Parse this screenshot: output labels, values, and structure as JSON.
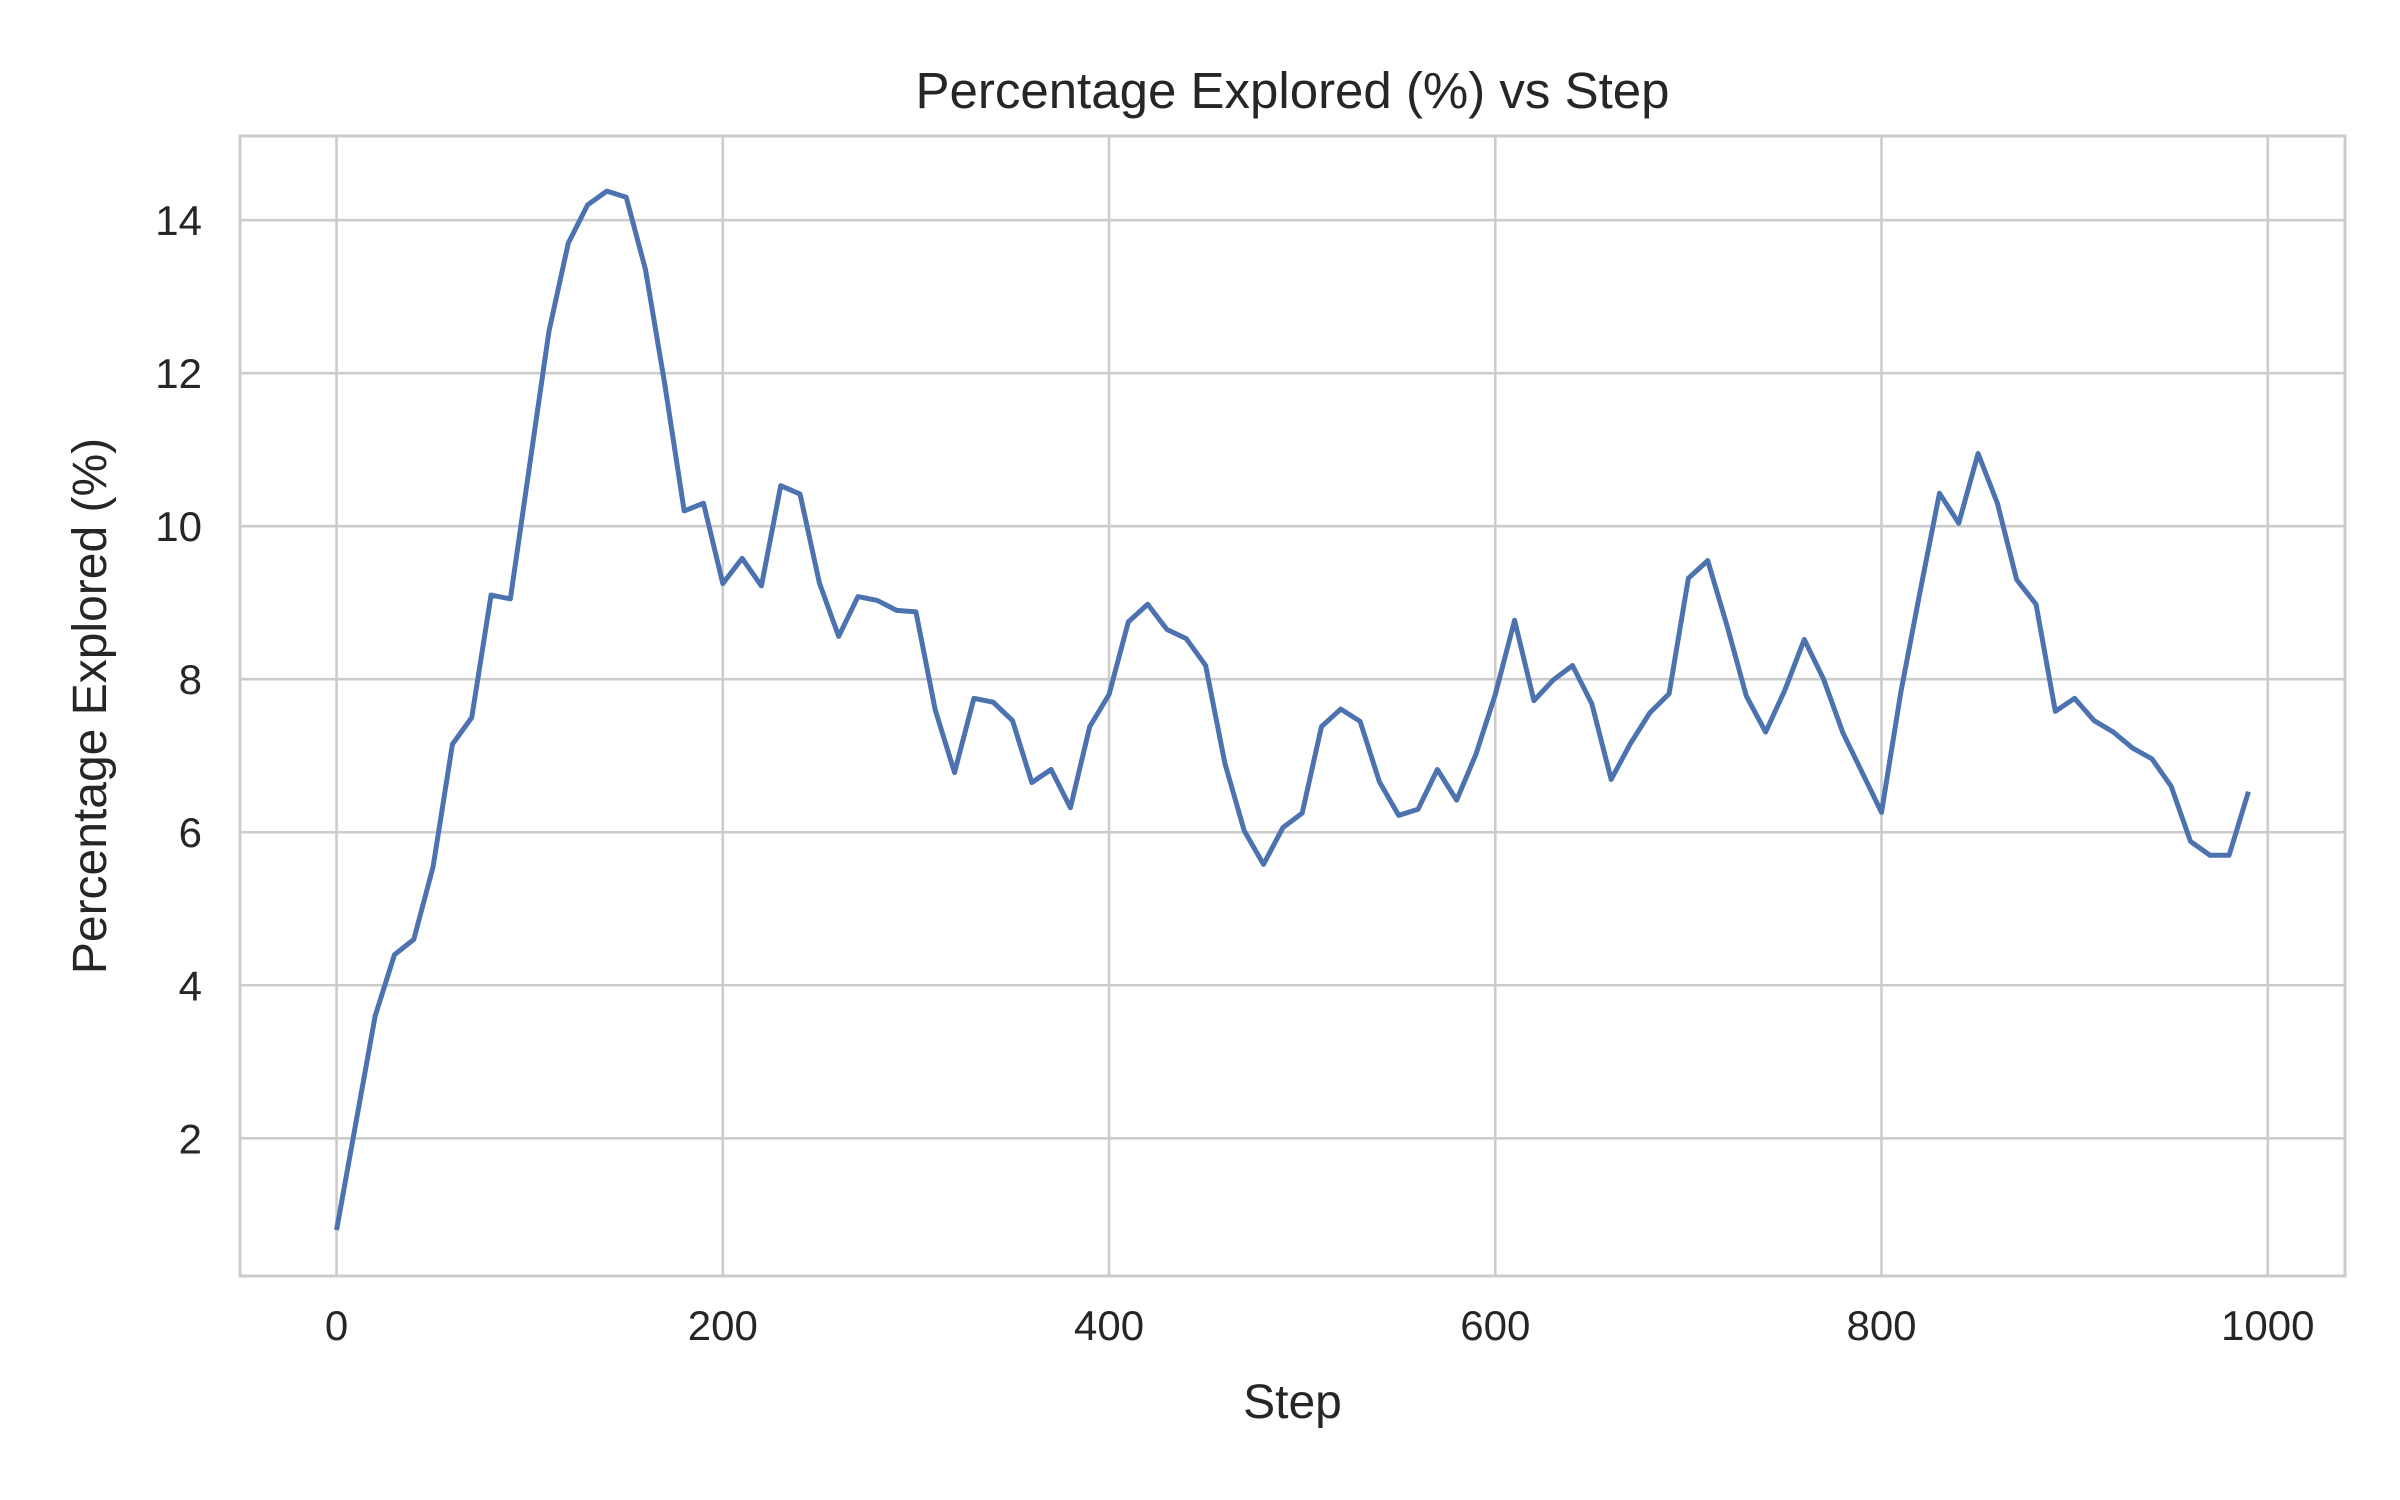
{
  "chart_data": {
    "type": "line",
    "title": "Percentage Explored (%) vs Step",
    "xlabel": "Step",
    "ylabel": "Percentage Explored (%)",
    "xlim": [
      -50,
      1040
    ],
    "ylim": [
      0.2,
      15.1
    ],
    "xticks": [
      0,
      200,
      400,
      600,
      800,
      1000
    ],
    "yticks": [
      2,
      4,
      6,
      8,
      10,
      12,
      14
    ],
    "grid": true,
    "line_color": "#4c72b0",
    "grid_color": "#cccccc",
    "series": [
      {
        "x": [
          0,
          10,
          20,
          30,
          40,
          50,
          60,
          70,
          80,
          90,
          100,
          110,
          120,
          130,
          140,
          150,
          160,
          170,
          180,
          190,
          200,
          210,
          220,
          230,
          240,
          250,
          260,
          270,
          280,
          290,
          300,
          310,
          320,
          330,
          340,
          350,
          360,
          370,
          380,
          390,
          400,
          410,
          420,
          430,
          440,
          450,
          460,
          470,
          480,
          490,
          500,
          510,
          520,
          530,
          540,
          550,
          560,
          570,
          580,
          590,
          600,
          610,
          620,
          630,
          640,
          650,
          660,
          670,
          680,
          690,
          700,
          710,
          720,
          730,
          740,
          750,
          760,
          770,
          780,
          790,
          800,
          810,
          820,
          830,
          840,
          850,
          860,
          870,
          880,
          890,
          900,
          910,
          920,
          930,
          940,
          950,
          960,
          970,
          980,
          990
        ],
        "values": [
          0.8,
          2.2,
          3.6,
          4.4,
          4.6,
          5.55,
          7.15,
          7.5,
          9.1,
          9.05,
          10.8,
          12.55,
          13.7,
          14.2,
          14.38,
          14.3,
          13.35,
          11.85,
          10.2,
          10.3,
          9.25,
          9.58,
          9.22,
          10.53,
          10.42,
          9.26,
          8.56,
          9.08,
          9.03,
          8.9,
          8.88,
          7.6,
          6.78,
          7.75,
          7.7,
          7.46,
          6.65,
          6.82,
          6.32,
          7.38,
          7.8,
          8.75,
          8.98,
          8.65,
          8.53,
          8.18,
          6.9,
          6.02,
          5.58,
          6.06,
          6.25,
          7.38,
          7.61,
          7.45,
          6.66,
          6.22,
          6.3,
          6.82,
          6.42,
          7.02,
          7.8,
          8.77,
          7.72,
          7.99,
          8.18,
          7.68,
          6.69,
          7.16,
          7.56,
          7.81,
          9.32,
          9.55,
          8.7,
          7.78,
          7.31,
          7.86,
          8.52,
          8.0,
          7.3,
          6.78,
          6.26,
          7.83,
          9.15,
          10.43,
          10.04,
          10.95,
          10.3,
          9.3,
          8.98,
          7.58,
          7.75,
          7.46,
          7.31,
          7.1,
          6.96,
          6.6,
          5.88,
          5.7,
          5.7,
          6.53
        ]
      }
    ]
  }
}
